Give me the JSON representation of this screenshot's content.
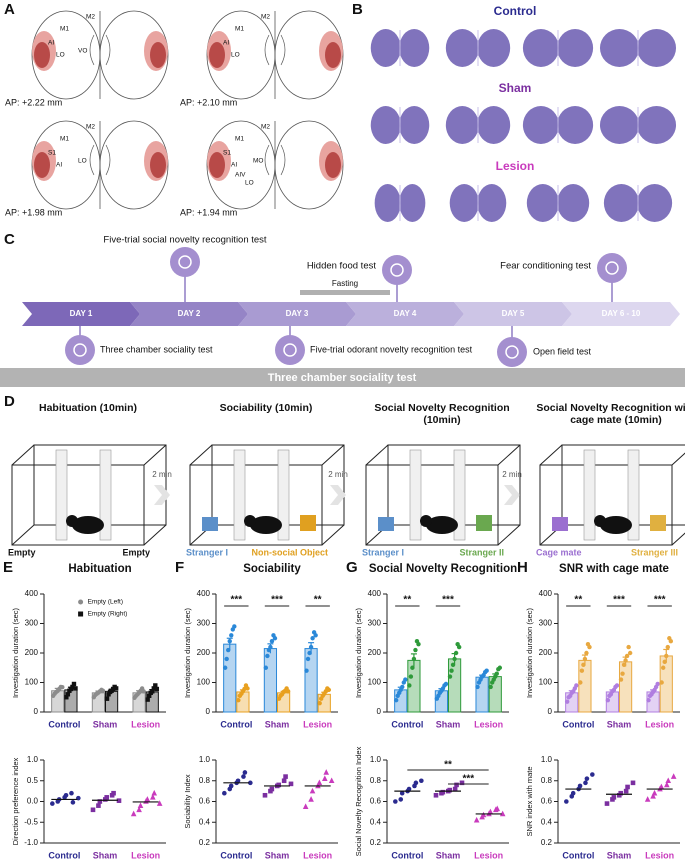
{
  "panel_a": {
    "label": "A",
    "sections": [
      {
        "ap": "AP: +2.22 mm",
        "regions": [
          "M2",
          "M1",
          "AI",
          "LO",
          "VO"
        ]
      },
      {
        "ap": "AP: +2.10 mm",
        "regions": [
          "M2",
          "M1",
          "AI",
          "LO"
        ]
      },
      {
        "ap": "AP: +1.98 mm",
        "regions": [
          "M2",
          "M1",
          "S1",
          "AI",
          "LO"
        ]
      },
      {
        "ap": "AP: +1.94 mm",
        "regions": [
          "M2",
          "M1",
          "S1",
          "AI",
          "MO",
          "AIV",
          "LO"
        ]
      }
    ]
  },
  "panel_b": {
    "label": "B",
    "groups": [
      "Control",
      "Sham",
      "Lesion"
    ],
    "group_colors": [
      "#2b2b8f",
      "#7b2fa0",
      "#c93bbd"
    ]
  },
  "panel_c": {
    "label": "C",
    "days": [
      "DAY 1",
      "DAY 2",
      "DAY 3",
      "DAY 4",
      "DAY 5",
      "DAY 6 - 10"
    ],
    "tests_above": [
      "Five-trial social novelty recognition test",
      "Hidden food test",
      "Fear conditioning test"
    ],
    "tests_below": [
      "Three chamber sociality test",
      "Five-trial odorant novelty recognition test",
      "Open field test"
    ],
    "fasting": "Fasting"
  },
  "banner": "Three chamber sociality test",
  "panel_d": {
    "label": "D",
    "intervals": [
      "2 min",
      "2 min",
      "2 min"
    ],
    "stages": [
      {
        "title": "Habituation (10min)",
        "left": "Empty",
        "right": "Empty",
        "left_color": "#111111",
        "right_color": "#111111"
      },
      {
        "title": "Sociability (10min)",
        "left": "Stranger I",
        "right": "Non-social Object",
        "left_color": "#5b8fc9",
        "right_color": "#e0a020"
      },
      {
        "title": "Social Novelty Recognition (10min)",
        "left": "Stranger I",
        "right": "Stranger II",
        "left_color": "#5b8fc9",
        "right_color": "#6aa84f"
      },
      {
        "title": "Social Novelty Recognition with cage mate (10min)",
        "left": "Cage mate",
        "right": "Stranger  III",
        "left_color": "#9b6fd0",
        "right_color": "#e0b040"
      }
    ]
  },
  "chart_data": [
    {
      "type": "bar",
      "panel_label": "E",
      "title": "Habituation",
      "y_label": "Investigation duration (sec)",
      "categories": [
        "Control",
        "Sham",
        "Lesion"
      ],
      "category_colors": [
        "#2b2b8f",
        "#7b2fa0",
        "#c93bbd"
      ],
      "ylim": [
        0,
        400
      ],
      "yticks": [
        0,
        100,
        200,
        300,
        400
      ],
      "legend": "upper center",
      "series": [
        {
          "name": "Empty (Left)",
          "color": "#8c8c8c",
          "marker": "circle",
          "values": [
            72,
            65,
            65
          ],
          "errors": [
            8,
            6,
            7
          ],
          "points": [
            [
              55,
              62,
              68,
              72,
              78,
              85,
              84
            ],
            [
              50,
              58,
              62,
              66,
              70,
              75,
              72
            ],
            [
              48,
              55,
              60,
              66,
              72,
              80,
              70
            ]
          ]
        },
        {
          "name": "Empty (Right)",
          "color": "#111111",
          "marker": "square",
          "values": [
            75,
            70,
            68
          ],
          "errors": [
            9,
            7,
            8
          ],
          "points": [
            [
              50,
              60,
              72,
              78,
              85,
              95,
              80
            ],
            [
              45,
              60,
              68,
              72,
              78,
              85,
              80
            ],
            [
              42,
              55,
              65,
              70,
              80,
              90,
              78
            ]
          ]
        }
      ]
    },
    {
      "type": "scatter",
      "y_label": "Direction preference index",
      "categories": [
        "Control",
        "Sham",
        "Lesion"
      ],
      "category_colors": [
        "#2b2b8f",
        "#7b2fa0",
        "#c93bbd"
      ],
      "markers": [
        "circle",
        "square",
        "triangle"
      ],
      "ylim": [
        -1,
        1
      ],
      "yticks": [
        {
          "value": -1,
          "label": "-1.0"
        },
        -0.5,
        {
          "value": 0,
          "label": "0.0"
        },
        0.5,
        {
          "value": 1,
          "label": "1.0"
        }
      ],
      "points": [
        [
          -0.05,
          0,
          0.05,
          0.1,
          0.15,
          0.2,
          -0.02,
          0.08
        ],
        [
          -0.2,
          -0.1,
          0,
          0.05,
          0.1,
          0.15,
          0.2,
          0.02
        ],
        [
          -0.3,
          -0.2,
          -0.1,
          0,
          0.05,
          0.1,
          0.2,
          -0.05
        ]
      ],
      "means": [
        0.05,
        0.03,
        -0.01
      ]
    },
    {
      "type": "bar",
      "panel_label": "F",
      "title": "Sociability",
      "y_label": "Investigation duration (sec)",
      "categories": [
        "Control",
        "Sham",
        "Lesion"
      ],
      "category_colors": [
        "#2b2b8f",
        "#7b2fa0",
        "#c93bbd"
      ],
      "ylim": [
        0,
        400
      ],
      "yticks": [
        0,
        100,
        200,
        300,
        400
      ],
      "significance": [
        "***",
        "***",
        "**"
      ],
      "series": [
        {
          "color": "#2a88d8",
          "marker": "circle",
          "values": [
            230,
            215,
            215
          ],
          "errors": [
            20,
            16,
            20
          ],
          "points": [
            [
              150,
              180,
              210,
              240,
              260,
              280,
              290
            ],
            [
              150,
              190,
              210,
              220,
              240,
              260,
              250
            ],
            [
              140,
              180,
              200,
              220,
              250,
              270,
              260
            ]
          ]
        },
        {
          "color": "#e8a020",
          "marker": "circle",
          "values": [
            68,
            65,
            60
          ],
          "errors": [
            7,
            5,
            7
          ],
          "points": [
            [
              40,
              55,
              62,
              70,
              78,
              90,
              80
            ],
            [
              45,
              55,
              60,
              68,
              72,
              80,
              70
            ],
            [
              30,
              45,
              55,
              62,
              70,
              80,
              75
            ]
          ]
        }
      ]
    },
    {
      "type": "scatter",
      "y_label": "Sociability Index",
      "categories": [
        "Control",
        "Sham",
        "Lesion"
      ],
      "category_colors": [
        "#2b2b8f",
        "#7b2fa0",
        "#c93bbd"
      ],
      "markers": [
        "circle",
        "square",
        "triangle"
      ],
      "ylim": [
        0.2,
        1
      ],
      "yticks": [
        0.2,
        0.4,
        0.6,
        0.8,
        {
          "value": 1,
          "label": "1.0"
        }
      ],
      "points": [
        [
          0.68,
          0.72,
          0.75,
          0.78,
          0.8,
          0.84,
          0.88,
          0.78
        ],
        [
          0.66,
          0.7,
          0.72,
          0.75,
          0.76,
          0.8,
          0.84,
          0.77
        ],
        [
          0.55,
          0.62,
          0.7,
          0.75,
          0.78,
          0.82,
          0.88,
          0.8
        ]
      ],
      "means": [
        0.78,
        0.75,
        0.75
      ]
    },
    {
      "type": "bar",
      "panel_label": "G",
      "title": "Social Novelty Recognition",
      "y_label": "Investigation duration (sec)",
      "categories": [
        "Control",
        "Sham",
        "Lesion"
      ],
      "category_colors": [
        "#2b2b8f",
        "#7b2fa0",
        "#c93bbd"
      ],
      "ylim": [
        0,
        400
      ],
      "yticks": [
        0,
        100,
        200,
        300,
        400
      ],
      "significance": [
        "**",
        "***",
        null
      ],
      "series": [
        {
          "color": "#2a88d8",
          "marker": "circle",
          "values": [
            75,
            72,
            118
          ],
          "errors": [
            9,
            7,
            7
          ],
          "points": [
            [
              40,
              55,
              65,
              75,
              85,
              100,
              110
            ],
            [
              45,
              55,
              65,
              72,
              80,
              90,
              95
            ],
            [
              85,
              100,
              110,
              120,
              125,
              135,
              140
            ]
          ]
        },
        {
          "color": "#2e9a3a",
          "marker": "circle",
          "values": [
            175,
            180,
            120
          ],
          "errors": [
            22,
            18,
            9
          ],
          "points": [
            [
              90,
              120,
              150,
              180,
              210,
              240,
              230
            ],
            [
              120,
              140,
              160,
              180,
              200,
              230,
              220
            ],
            [
              85,
              100,
              110,
              120,
              130,
              145,
              150
            ]
          ]
        }
      ]
    },
    {
      "type": "scatter",
      "y_label": "Social Novelty Recognition Index",
      "categories": [
        "Control",
        "Sham",
        "Lesion"
      ],
      "category_colors": [
        "#2b2b8f",
        "#7b2fa0",
        "#c93bbd"
      ],
      "markers": [
        "circle",
        "square",
        "triangle"
      ],
      "ylim": [
        0.2,
        1
      ],
      "yticks": [
        0.2,
        0.4,
        0.6,
        0.8,
        {
          "value": 1,
          "label": "1.0"
        }
      ],
      "points": [
        [
          0.6,
          0.62,
          0.68,
          0.7,
          0.72,
          0.75,
          0.78,
          0.8
        ],
        [
          0.66,
          0.68,
          0.69,
          0.7,
          0.71,
          0.72,
          0.76,
          0.78
        ],
        [
          0.42,
          0.45,
          0.47,
          0.48,
          0.5,
          0.52,
          0.53,
          0.48
        ]
      ],
      "means": [
        0.7,
        0.7,
        0.48
      ],
      "brackets": [
        {
          "between": [
            "Control",
            "Lesion"
          ],
          "label": "**"
        },
        {
          "between": [
            "Sham",
            "Lesion"
          ],
          "label": "***"
        }
      ]
    },
    {
      "type": "bar",
      "panel_label": "H",
      "title": "SNR with cage mate",
      "y_label": "Investigation duration (sec)",
      "categories": [
        "Control",
        "Sham",
        "Lesion"
      ],
      "category_colors": [
        "#2b2b8f",
        "#7b2fa0",
        "#c93bbd"
      ],
      "ylim": [
        0,
        400
      ],
      "yticks": [
        0,
        100,
        200,
        300,
        400
      ],
      "significance": [
        "**",
        "***",
        "***"
      ],
      "series": [
        {
          "color": "#b07ee0",
          "marker": "circle",
          "values": [
            65,
            68,
            68
          ],
          "errors": [
            7,
            7,
            7
          ],
          "points": [
            [
              35,
              50,
              55,
              65,
              70,
              80,
              90
            ],
            [
              40,
              55,
              60,
              70,
              75,
              85,
              90
            ],
            [
              40,
              55,
              60,
              68,
              75,
              85,
              95
            ]
          ]
        },
        {
          "color": "#e8a840",
          "marker": "circle",
          "values": [
            175,
            170,
            190
          ],
          "errors": [
            18,
            16,
            22
          ],
          "points": [
            [
              100,
              140,
              160,
              180,
              200,
              230,
              220
            ],
            [
              110,
              130,
              160,
              175,
              190,
              220,
              200
            ],
            [
              100,
              150,
              170,
              190,
              220,
              250,
              240
            ]
          ]
        }
      ]
    },
    {
      "type": "scatter",
      "y_label": "SNR index with mate",
      "categories": [
        "Control",
        "Sham",
        "Lesion"
      ],
      "category_colors": [
        "#2b2b8f",
        "#7b2fa0",
        "#c93bbd"
      ],
      "markers": [
        "circle",
        "square",
        "triangle"
      ],
      "ylim": [
        0.2,
        1
      ],
      "yticks": [
        0.2,
        0.4,
        0.6,
        0.8,
        {
          "value": 1,
          "label": "1.0"
        }
      ],
      "points": [
        [
          0.6,
          0.65,
          0.68,
          0.72,
          0.75,
          0.78,
          0.82,
          0.86
        ],
        [
          0.58,
          0.62,
          0.64,
          0.66,
          0.68,
          0.7,
          0.74,
          0.78
        ],
        [
          0.62,
          0.65,
          0.68,
          0.72,
          0.74,
          0.76,
          0.8,
          0.84
        ]
      ],
      "means": [
        0.72,
        0.67,
        0.72
      ]
    }
  ]
}
